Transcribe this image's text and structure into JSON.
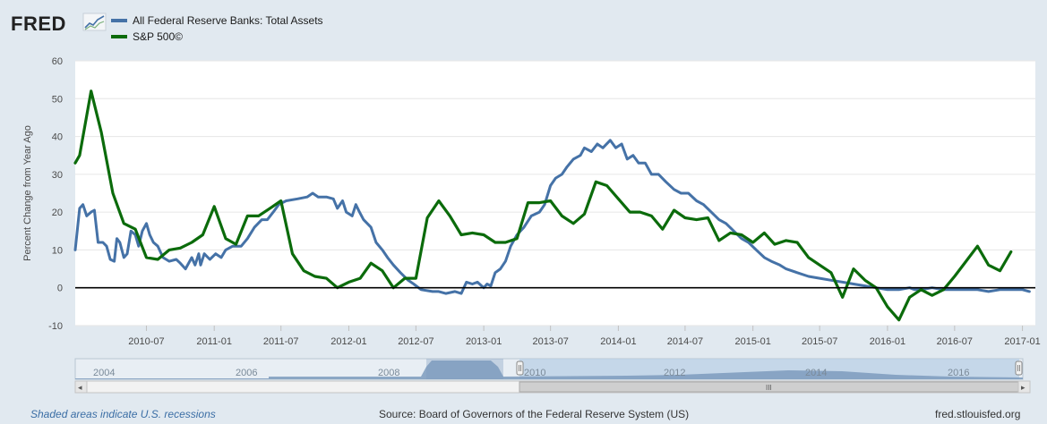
{
  "logo": {
    "text": "FRED",
    "icon": "trend-line-icon"
  },
  "footer": {
    "left": "Shaded areas indicate U.S. recessions",
    "center": "Source: Board of Governors of the Federal Reserve System (US)",
    "right": "fred.stlouisfed.org"
  },
  "navigator": {
    "year_labels": [
      "2004",
      "2006",
      "2008",
      "2010",
      "2012",
      "2014",
      "2016"
    ],
    "scroll_grip": "III",
    "left_arrow": "◂",
    "right_arrow": "▸"
  },
  "colors": {
    "series_assets": "#4572a7",
    "series_sp500": "#0b6b0b",
    "plot_bg": "#ffffff",
    "page_bg": "#e1e9f0",
    "zero_line": "#000000"
  },
  "chart_data": {
    "type": "line",
    "title": "",
    "xlabel": "",
    "ylabel": "Percent Change from Year Ago",
    "ylim": [
      -10,
      60
    ],
    "yticks": [
      -10,
      0,
      10,
      20,
      30,
      40,
      50,
      60
    ],
    "xlim": [
      "2009-12-20",
      "2017-02-05"
    ],
    "xticks": [
      "2010-07",
      "2011-01",
      "2011-07",
      "2012-01",
      "2012-07",
      "2013-01",
      "2013-07",
      "2014-01",
      "2014-07",
      "2015-01",
      "2015-07",
      "2016-01",
      "2016-07",
      "2017-01"
    ],
    "grid": true,
    "legend_position": "top-left",
    "series": [
      {
        "name": "All Federal Reserve Banks: Total Assets",
        "color": "#4572a7",
        "points": [
          [
            "2009-12-20",
            10
          ],
          [
            "2010-01-01",
            21
          ],
          [
            "2010-01-10",
            22
          ],
          [
            "2010-01-20",
            19
          ],
          [
            "2010-02-01",
            20
          ],
          [
            "2010-02-10",
            20.5
          ],
          [
            "2010-02-20",
            12
          ],
          [
            "2010-03-05",
            12
          ],
          [
            "2010-03-15",
            11
          ],
          [
            "2010-03-25",
            7.5
          ],
          [
            "2010-04-05",
            7
          ],
          [
            "2010-04-12",
            13
          ],
          [
            "2010-04-20",
            12
          ],
          [
            "2010-05-01",
            8
          ],
          [
            "2010-05-10",
            9
          ],
          [
            "2010-05-20",
            15
          ],
          [
            "2010-06-01",
            14
          ],
          [
            "2010-06-10",
            11
          ],
          [
            "2010-06-20",
            15
          ],
          [
            "2010-07-01",
            17
          ],
          [
            "2010-07-10",
            14
          ],
          [
            "2010-07-20",
            12
          ],
          [
            "2010-08-01",
            11
          ],
          [
            "2010-08-15",
            8
          ],
          [
            "2010-09-01",
            7
          ],
          [
            "2010-09-20",
            7.5
          ],
          [
            "2010-10-01",
            6.5
          ],
          [
            "2010-10-15",
            5
          ],
          [
            "2010-11-01",
            8
          ],
          [
            "2010-11-10",
            6
          ],
          [
            "2010-11-20",
            9
          ],
          [
            "2010-11-25",
            6
          ],
          [
            "2010-12-05",
            9
          ],
          [
            "2010-12-20",
            7.5
          ],
          [
            "2011-01-05",
            9
          ],
          [
            "2011-01-20",
            8
          ],
          [
            "2011-02-01",
            10
          ],
          [
            "2011-02-20",
            11
          ],
          [
            "2011-03-15",
            11
          ],
          [
            "2011-04-01",
            13
          ],
          [
            "2011-04-20",
            16
          ],
          [
            "2011-05-10",
            18
          ],
          [
            "2011-05-25",
            18
          ],
          [
            "2011-06-10",
            20
          ],
          [
            "2011-06-25",
            22
          ],
          [
            "2011-07-15",
            23
          ],
          [
            "2011-08-15",
            23.5
          ],
          [
            "2011-09-10",
            24
          ],
          [
            "2011-09-25",
            25
          ],
          [
            "2011-10-10",
            24
          ],
          [
            "2011-11-01",
            24
          ],
          [
            "2011-11-20",
            23.5
          ],
          [
            "2011-12-01",
            21
          ],
          [
            "2011-12-15",
            23
          ],
          [
            "2011-12-25",
            20
          ],
          [
            "2012-01-10",
            19
          ],
          [
            "2012-01-20",
            22
          ],
          [
            "2012-01-30",
            20
          ],
          [
            "2012-02-10",
            18
          ],
          [
            "2012-03-01",
            16
          ],
          [
            "2012-03-15",
            12
          ],
          [
            "2012-04-01",
            10
          ],
          [
            "2012-04-15",
            8
          ],
          [
            "2012-05-01",
            6
          ],
          [
            "2012-05-20",
            4
          ],
          [
            "2012-06-10",
            2
          ],
          [
            "2012-06-25",
            1
          ],
          [
            "2012-07-15",
            -0.5
          ],
          [
            "2012-08-15",
            -1
          ],
          [
            "2012-09-01",
            -1
          ],
          [
            "2012-09-20",
            -1.5
          ],
          [
            "2012-10-15",
            -1
          ],
          [
            "2012-11-01",
            -1.5
          ],
          [
            "2012-11-15",
            1.5
          ],
          [
            "2012-12-01",
            1
          ],
          [
            "2012-12-15",
            1.5
          ],
          [
            "2013-01-01",
            0
          ],
          [
            "2013-01-10",
            1
          ],
          [
            "2013-01-20",
            0.5
          ],
          [
            "2013-02-01",
            4
          ],
          [
            "2013-02-15",
            5
          ],
          [
            "2013-03-01",
            7
          ],
          [
            "2013-03-15",
            11
          ],
          [
            "2013-04-01",
            14
          ],
          [
            "2013-04-20",
            16
          ],
          [
            "2013-05-10",
            19
          ],
          [
            "2013-06-01",
            20
          ],
          [
            "2013-06-15",
            22
          ],
          [
            "2013-07-01",
            27
          ],
          [
            "2013-07-15",
            29
          ],
          [
            "2013-08-01",
            30
          ],
          [
            "2013-08-15",
            32
          ],
          [
            "2013-09-01",
            34
          ],
          [
            "2013-09-20",
            35
          ],
          [
            "2013-10-01",
            37
          ],
          [
            "2013-10-20",
            36
          ],
          [
            "2013-11-05",
            38
          ],
          [
            "2013-11-20",
            37
          ],
          [
            "2013-12-10",
            39
          ],
          [
            "2013-12-25",
            37
          ],
          [
            "2014-01-10",
            38
          ],
          [
            "2014-01-25",
            34
          ],
          [
            "2014-02-10",
            35
          ],
          [
            "2014-02-25",
            33
          ],
          [
            "2014-03-15",
            33
          ],
          [
            "2014-04-01",
            30
          ],
          [
            "2014-04-20",
            30
          ],
          [
            "2014-05-10",
            28
          ],
          [
            "2014-06-01",
            26
          ],
          [
            "2014-06-20",
            25
          ],
          [
            "2014-07-10",
            25
          ],
          [
            "2014-08-01",
            23
          ],
          [
            "2014-08-20",
            22
          ],
          [
            "2014-09-10",
            20
          ],
          [
            "2014-10-01",
            18
          ],
          [
            "2014-10-20",
            17
          ],
          [
            "2014-11-10",
            15
          ],
          [
            "2014-12-01",
            13
          ],
          [
            "2014-12-20",
            12
          ],
          [
            "2015-01-10",
            10
          ],
          [
            "2015-02-01",
            8
          ],
          [
            "2015-02-20",
            7
          ],
          [
            "2015-03-15",
            6
          ],
          [
            "2015-04-01",
            5
          ],
          [
            "2015-05-01",
            4
          ],
          [
            "2015-06-01",
            3
          ],
          [
            "2015-07-01",
            2.5
          ],
          [
            "2015-08-01",
            2
          ],
          [
            "2015-09-01",
            1.5
          ],
          [
            "2015-10-01",
            1
          ],
          [
            "2015-11-01",
            0.5
          ],
          [
            "2015-12-01",
            0
          ],
          [
            "2016-01-01",
            -0.5
          ],
          [
            "2016-02-01",
            -0.5
          ],
          [
            "2016-03-01",
            0
          ],
          [
            "2016-03-15",
            -0.5
          ],
          [
            "2016-04-01",
            -0.5
          ],
          [
            "2016-05-01",
            0
          ],
          [
            "2016-06-01",
            -0.5
          ],
          [
            "2016-07-01",
            -0.5
          ],
          [
            "2016-08-01",
            -0.5
          ],
          [
            "2016-09-01",
            -0.5
          ],
          [
            "2016-10-01",
            -1
          ],
          [
            "2016-11-01",
            -0.5
          ],
          [
            "2016-12-01",
            -0.5
          ],
          [
            "2017-01-01",
            -0.5
          ],
          [
            "2017-01-20",
            -1
          ]
        ]
      },
      {
        "name": "S&P 500©",
        "color": "#0b6b0b",
        "points": [
          [
            "2009-12-20",
            33
          ],
          [
            "2010-01-01",
            35
          ],
          [
            "2010-02-01",
            52
          ],
          [
            "2010-03-01",
            41
          ],
          [
            "2010-04-01",
            25
          ],
          [
            "2010-05-01",
            17
          ],
          [
            "2010-06-01",
            15.5
          ],
          [
            "2010-07-01",
            8
          ],
          [
            "2010-08-01",
            7.5
          ],
          [
            "2010-09-01",
            10
          ],
          [
            "2010-10-01",
            10.5
          ],
          [
            "2010-11-01",
            12
          ],
          [
            "2010-12-01",
            14
          ],
          [
            "2011-01-01",
            21.5
          ],
          [
            "2011-02-01",
            13
          ],
          [
            "2011-03-01",
            11.5
          ],
          [
            "2011-04-01",
            19
          ],
          [
            "2011-05-01",
            19
          ],
          [
            "2011-06-01",
            21
          ],
          [
            "2011-07-01",
            23
          ],
          [
            "2011-08-01",
            9
          ],
          [
            "2011-09-01",
            4.5
          ],
          [
            "2011-10-01",
            3
          ],
          [
            "2011-11-01",
            2.5
          ],
          [
            "2011-12-01",
            0
          ],
          [
            "2012-01-01",
            1.5
          ],
          [
            "2012-02-01",
            2.5
          ],
          [
            "2012-03-01",
            6.5
          ],
          [
            "2012-04-01",
            4.5
          ],
          [
            "2012-05-01",
            0
          ],
          [
            "2012-06-01",
            2.5
          ],
          [
            "2012-07-01",
            2.5
          ],
          [
            "2012-08-01",
            18.5
          ],
          [
            "2012-09-01",
            23
          ],
          [
            "2012-10-01",
            19
          ],
          [
            "2012-11-01",
            14
          ],
          [
            "2012-12-01",
            14.5
          ],
          [
            "2013-01-01",
            14
          ],
          [
            "2013-02-01",
            12
          ],
          [
            "2013-03-01",
            12
          ],
          [
            "2013-04-01",
            13
          ],
          [
            "2013-05-01",
            22.5
          ],
          [
            "2013-06-01",
            22.5
          ],
          [
            "2013-07-01",
            23
          ],
          [
            "2013-08-01",
            19
          ],
          [
            "2013-09-01",
            17
          ],
          [
            "2013-10-01",
            19.5
          ],
          [
            "2013-11-01",
            28
          ],
          [
            "2013-12-01",
            27
          ],
          [
            "2014-01-01",
            23.5
          ],
          [
            "2014-02-01",
            20
          ],
          [
            "2014-03-01",
            20
          ],
          [
            "2014-04-01",
            19
          ],
          [
            "2014-05-01",
            15.5
          ],
          [
            "2014-06-01",
            20.5
          ],
          [
            "2014-07-01",
            18.5
          ],
          [
            "2014-08-01",
            18
          ],
          [
            "2014-09-01",
            18.5
          ],
          [
            "2014-10-01",
            12.5
          ],
          [
            "2014-11-01",
            14.5
          ],
          [
            "2014-12-01",
            14
          ],
          [
            "2015-01-01",
            12
          ],
          [
            "2015-02-01",
            14.5
          ],
          [
            "2015-03-01",
            11.5
          ],
          [
            "2015-04-01",
            12.5
          ],
          [
            "2015-05-01",
            12
          ],
          [
            "2015-06-01",
            8
          ],
          [
            "2015-07-01",
            6
          ],
          [
            "2015-08-01",
            4
          ],
          [
            "2015-09-01",
            -2.5
          ],
          [
            "2015-10-01",
            5
          ],
          [
            "2015-11-01",
            2
          ],
          [
            "2015-12-01",
            0
          ],
          [
            "2016-01-01",
            -5
          ],
          [
            "2016-02-01",
            -8.5
          ],
          [
            "2016-03-01",
            -2.5
          ],
          [
            "2016-04-01",
            -0.5
          ],
          [
            "2016-05-01",
            -2
          ],
          [
            "2016-06-01",
            -0.5
          ],
          [
            "2016-07-01",
            3
          ],
          [
            "2016-08-01",
            7
          ],
          [
            "2016-09-01",
            11
          ],
          [
            "2016-10-01",
            6
          ],
          [
            "2016-11-01",
            4.5
          ],
          [
            "2016-12-01",
            9.5
          ]
        ]
      }
    ]
  }
}
